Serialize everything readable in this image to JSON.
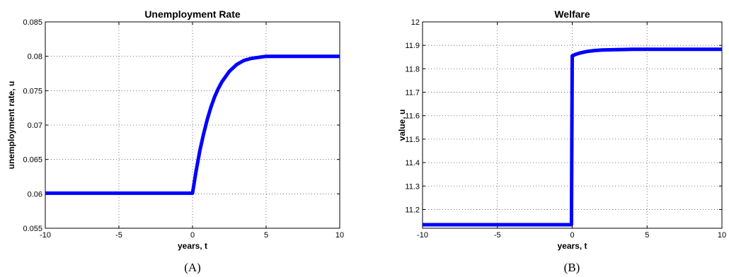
{
  "chart_data": [
    {
      "type": "line",
      "title": "Unemployment Rate",
      "xlabel": "years, t",
      "ylabel": "unemployment rate, u",
      "panel_label": "(A)",
      "xlim": [
        -10,
        10
      ],
      "ylim": [
        0.055,
        0.085
      ],
      "xticks": [
        -10,
        -5,
        0,
        5,
        10
      ],
      "xtick_labels": [
        "-10",
        "-5",
        "0",
        "5",
        "10"
      ],
      "yticks": [
        0.055,
        0.06,
        0.065,
        0.07,
        0.075,
        0.08,
        0.085
      ],
      "ytick_labels": [
        "0.055",
        "0.06",
        "0.065",
        "0.07",
        "0.075",
        "0.08",
        "0.085"
      ],
      "grid": true,
      "color": "#0000ff",
      "series": [
        {
          "x": [
            -10,
            -8,
            -6,
            -4,
            -2,
            0,
            0.25,
            0.5,
            0.75,
            1,
            1.25,
            1.5,
            1.75,
            2,
            2.5,
            3,
            3.5,
            4,
            5,
            6,
            7,
            8,
            10
          ],
          "y": [
            0.0601,
            0.0601,
            0.0601,
            0.0601,
            0.0601,
            0.0601,
            0.0634,
            0.0663,
            0.0687,
            0.0708,
            0.0726,
            0.0741,
            0.0753,
            0.0763,
            0.0778,
            0.0788,
            0.0794,
            0.0797,
            0.08,
            0.08,
            0.08,
            0.08,
            0.08
          ]
        }
      ]
    },
    {
      "type": "line",
      "title": "Welfare",
      "xlabel": "years, t",
      "ylabel": "value, u",
      "panel_label": "(B)",
      "xlim": [
        -10,
        10
      ],
      "ylim": [
        11.12,
        12
      ],
      "xticks": [
        -10,
        -5,
        0,
        5,
        10
      ],
      "xtick_labels": [
        "-10",
        "-5",
        "0",
        "5",
        "10"
      ],
      "yticks": [
        11.2,
        11.3,
        11.4,
        11.5,
        11.6,
        11.7,
        11.8,
        11.9,
        12
      ],
      "ytick_labels": [
        "11.2",
        "11.3",
        "11.4",
        "11.5",
        "11.6",
        "11.7",
        "11.8",
        "11.9",
        "12"
      ],
      "grid": true,
      "color": "#0000ff",
      "series": [
        {
          "x": [
            -10,
            -6,
            -2,
            -0.05,
            0,
            0.25,
            0.5,
            1,
            1.5,
            2,
            3,
            4,
            6,
            8,
            10
          ],
          "y": [
            11.135,
            11.135,
            11.135,
            11.135,
            11.855,
            11.862,
            11.867,
            11.874,
            11.878,
            11.88,
            11.882,
            11.883,
            11.883,
            11.883,
            11.883
          ]
        }
      ]
    }
  ]
}
